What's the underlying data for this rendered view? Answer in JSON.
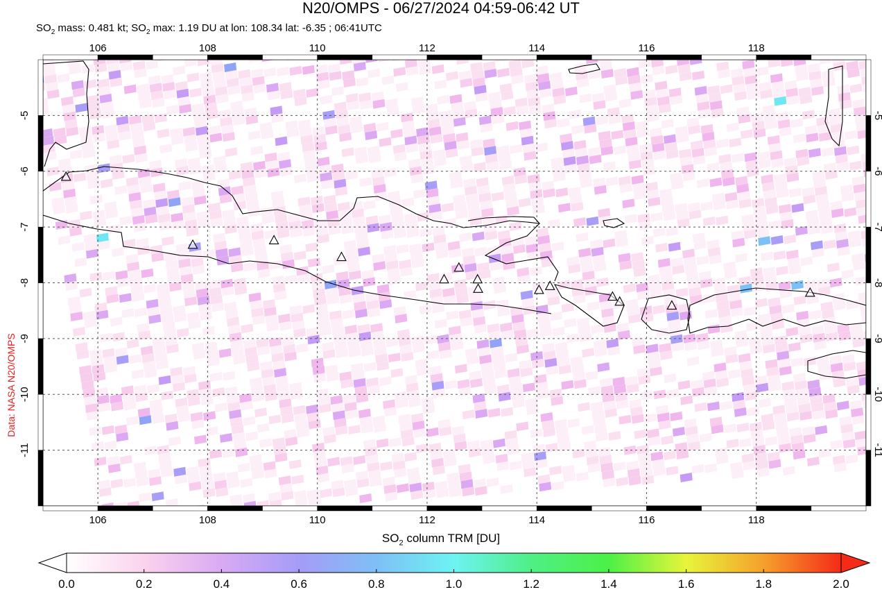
{
  "title": "N20/OMPS - 06/27/2024 04:59-06:42 UT",
  "subtitle": {
    "prefix": "SO",
    "sub": "2",
    "mass_text": " mass: 0.481 kt; SO",
    "sub2": "2",
    "rest": " max: 1.19 DU at lon: 108.34 lat: -6.35 ; 06:41UTC"
  },
  "credit": "Data: NASA N20/OMPS",
  "map": {
    "lon_range": [
      105,
      120
    ],
    "lat_range": [
      -12,
      -4
    ],
    "lon_ticks": [
      "106",
      "108",
      "110",
      "112",
      "114",
      "116",
      "118"
    ],
    "lat_ticks": [
      "-5",
      "-6",
      "-7",
      "-8",
      "-9",
      "-10",
      "-11"
    ],
    "grid": "dashed",
    "volcano_icon": "triangle-icon",
    "volcanoes": [
      {
        "lon": 107.73,
        "lat": -7.32
      },
      {
        "lon": 109.21,
        "lat": -7.24
      },
      {
        "lon": 110.44,
        "lat": -7.54
      },
      {
        "lon": 112.31,
        "lat": -7.94
      },
      {
        "lon": 112.58,
        "lat": -7.73
      },
      {
        "lon": 112.92,
        "lat": -7.94
      },
      {
        "lon": 112.93,
        "lat": -8.11
      },
      {
        "lon": 114.04,
        "lat": -8.13
      },
      {
        "lon": 114.24,
        "lat": -8.06
      },
      {
        "lon": 115.38,
        "lat": -8.25
      },
      {
        "lon": 115.51,
        "lat": -8.34
      },
      {
        "lon": 116.46,
        "lat": -8.41
      },
      {
        "lon": 118.98,
        "lat": -8.18
      },
      {
        "lon": 105.42,
        "lat": -6.1
      }
    ]
  },
  "colorbar": {
    "label_prefix": "SO",
    "label_sub": "2",
    "label_rest": " column TRM [DU]",
    "ticks": [
      "0.0",
      "0.2",
      "0.4",
      "0.6",
      "0.8",
      "1.0",
      "1.2",
      "1.4",
      "1.6",
      "1.8",
      "2.0"
    ],
    "range": [
      0.0,
      2.0
    ],
    "colors": [
      "#ffffff",
      "#fbd3ee",
      "#d9aaf4",
      "#a59cf7",
      "#7fbff6",
      "#6df3f3",
      "#4fef86",
      "#4cf047",
      "#e7f53a",
      "#f6a02c",
      "#f52a17"
    ]
  }
}
